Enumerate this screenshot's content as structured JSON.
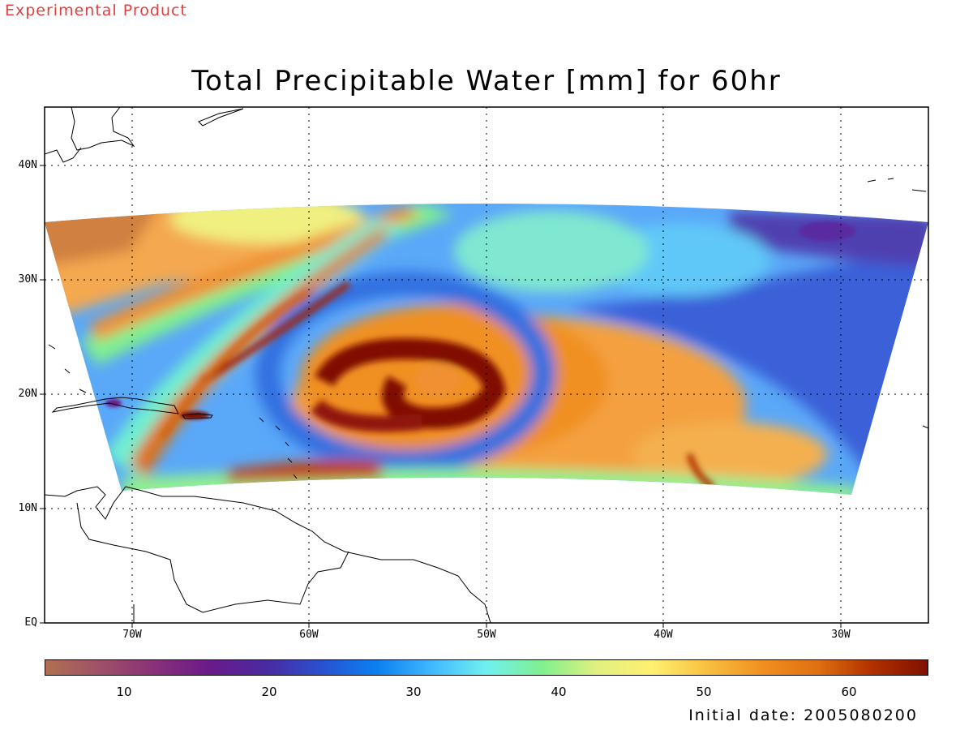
{
  "banner": "Experimental Product",
  "title": "Total Precipitable Water [mm] for 60hr",
  "initial_date": "Initial date: 2005080200",
  "lat_labels": [
    "40N",
    "30N",
    "20N",
    "10N",
    "EQ"
  ],
  "lon_labels": [
    "70W",
    "60W",
    "50W",
    "40W",
    "30W"
  ],
  "colorbar": {
    "ticks": [
      "10",
      "20",
      "30",
      "40",
      "50",
      "60"
    ],
    "range": [
      5,
      65
    ],
    "unit": "mm",
    "stops": [
      "#b07050",
      "#9e5068",
      "#88307a",
      "#6a1a8a",
      "#4a2aa0",
      "#2a50d0",
      "#0a80f0",
      "#40b8ff",
      "#70f0f0",
      "#80f090",
      "#e0f080",
      "#fff070",
      "#f8c040",
      "#f09020",
      "#e07010",
      "#b03000",
      "#801000"
    ]
  },
  "map_data": {
    "domain": {
      "lon": [
        -75,
        -25
      ],
      "lat": [
        0,
        45
      ]
    },
    "graticule": {
      "lon_step": 10,
      "lat_step": 10
    },
    "features": [
      "tropical cyclone centered near 21N 53W",
      "dry slot over central Atlantic"
    ]
  }
}
